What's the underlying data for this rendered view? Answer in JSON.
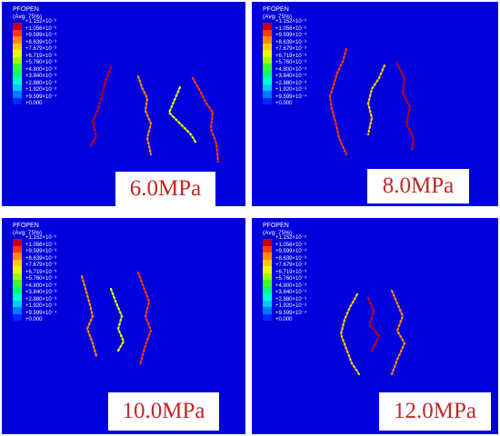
{
  "panels": [
    {
      "legend_title": "PFOPEN",
      "legend_avg": "(Avg: 75%)",
      "pressure": "6.0MPa"
    },
    {
      "legend_title": "PFOPEN",
      "legend_avg": "(Avg: 75%)",
      "pressure": "8.0MPa"
    },
    {
      "legend_title": "PFOPEN",
      "legend_avg": "(Avg: 75%)",
      "pressure": "10.0MPa"
    },
    {
      "legend_title": "PFOPEN",
      "legend_avg": "(Avg: 75%)",
      "pressure": "12.0MPa"
    }
  ],
  "legend_values": [
    "+1.152×10⁻²",
    "+1.056×10⁻²",
    "+9.599×10⁻³",
    "+8.639×10⁻³",
    "+7.679×10⁻³",
    "+6.719×10⁻³",
    "+5.760×10⁻³",
    "+4.800×10⁻³",
    "+3.840×10⁻³",
    "+2.880×10⁻³",
    "+1.920×10⁻³",
    "+9.599×10⁻⁴",
    "+0.000"
  ],
  "legend_colors": [
    "#c8000c",
    "#ff3a00",
    "#ff8c00",
    "#ffcc00",
    "#e8ff00",
    "#9cff00",
    "#3cff28",
    "#00ff78",
    "#00ffcc",
    "#00c8ff",
    "#0078ff",
    "#0028ff"
  ],
  "background_color": "#0000dd",
  "label_color": "#c0282a"
}
